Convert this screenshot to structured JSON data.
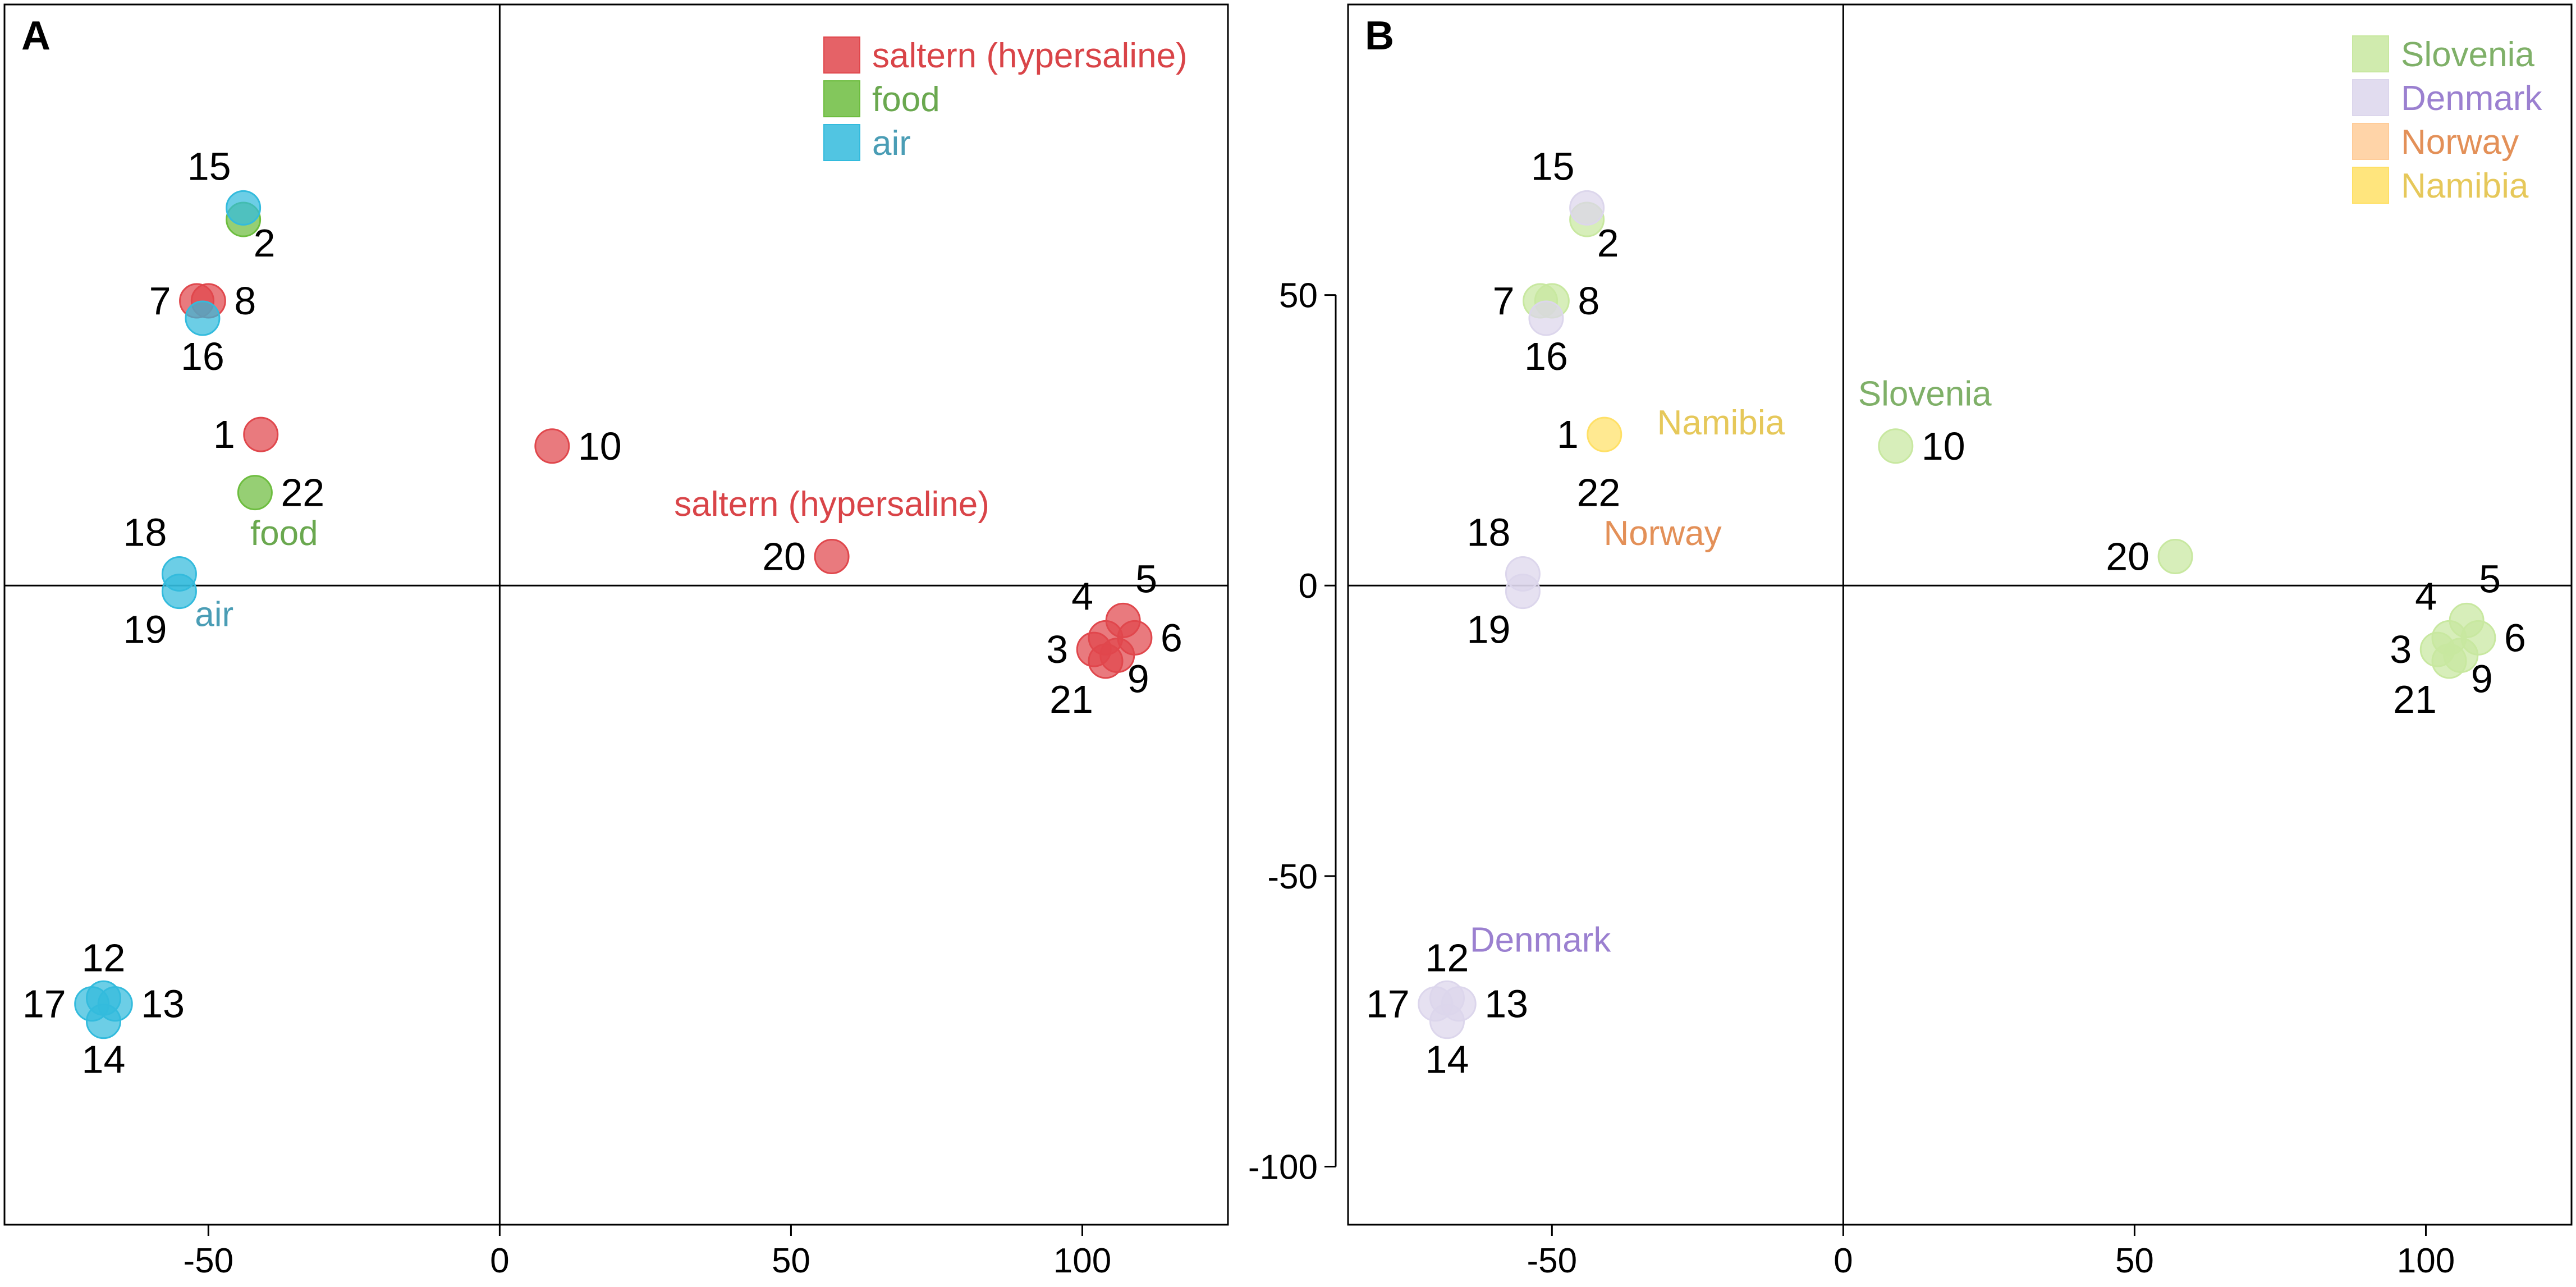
{
  "chart_data": [
    {
      "type": "scatter",
      "panel": "A",
      "xlim": [
        -85,
        125
      ],
      "ylim": [
        -110,
        100
      ],
      "xticks": [
        -50,
        0,
        50,
        100
      ],
      "yticks": [],
      "legend": [
        {
          "label": "saltern (hypersaline)",
          "color": "#e0474c",
          "text_color": "#d94448"
        },
        {
          "label": "food",
          "color": "#6dbd3f",
          "text_color": "#6aa84f"
        },
        {
          "label": "air",
          "color": "#33bbdd",
          "text_color": "#4a9db5"
        }
      ],
      "annotations": [
        {
          "text": "saltern (hypersaline)",
          "x": 57,
          "y": 12,
          "color": "#d94448"
        },
        {
          "text": "food",
          "x": -37,
          "y": 7,
          "color": "#6aa84f"
        },
        {
          "text": "air",
          "x": -49,
          "y": -7,
          "color": "#4a9db5"
        }
      ],
      "points": [
        {
          "id": "1",
          "x": -41,
          "y": 26,
          "group": "saltern (hypersaline)",
          "color": "#e0474c",
          "label_pos": "left"
        },
        {
          "id": "2",
          "x": -44,
          "y": 63,
          "group": "food",
          "color": "#6dbd3f",
          "label_pos": "below-right"
        },
        {
          "id": "3",
          "x": 102,
          "y": -11,
          "group": "saltern (hypersaline)",
          "color": "#e0474c",
          "label_pos": "left"
        },
        {
          "id": "4",
          "x": 104,
          "y": -9,
          "group": "saltern (hypersaline)",
          "color": "#e0474c",
          "label_pos": "above-left"
        },
        {
          "id": "5",
          "x": 107,
          "y": -6,
          "group": "saltern (hypersaline)",
          "color": "#e0474c",
          "label_pos": "above-right"
        },
        {
          "id": "6",
          "x": 109,
          "y": -9,
          "group": "saltern (hypersaline)",
          "color": "#e0474c",
          "label_pos": "right"
        },
        {
          "id": "7",
          "x": -52,
          "y": 49,
          "group": "saltern (hypersaline)",
          "color": "#e0474c",
          "label_pos": "left"
        },
        {
          "id": "8",
          "x": -50,
          "y": 49,
          "group": "saltern (hypersaline)",
          "color": "#e0474c",
          "label_pos": "right"
        },
        {
          "id": "9",
          "x": 106,
          "y": -12,
          "group": "saltern (hypersaline)",
          "color": "#e0474c",
          "label_pos": "below-right"
        },
        {
          "id": "10",
          "x": 9,
          "y": 24,
          "group": "saltern (hypersaline)",
          "color": "#e0474c",
          "label_pos": "right"
        },
        {
          "id": "12",
          "x": -68,
          "y": -71,
          "group": "air",
          "color": "#33bbdd",
          "label_pos": "above"
        },
        {
          "id": "13",
          "x": -66,
          "y": -72,
          "group": "air",
          "color": "#33bbdd",
          "label_pos": "right"
        },
        {
          "id": "14",
          "x": -68,
          "y": -75,
          "group": "air",
          "color": "#33bbdd",
          "label_pos": "below"
        },
        {
          "id": "15",
          "x": -44,
          "y": 65,
          "group": "air",
          "color": "#33bbdd",
          "label_pos": "above-left"
        },
        {
          "id": "16",
          "x": -51,
          "y": 46,
          "group": "air",
          "color": "#33bbdd",
          "label_pos": "below"
        },
        {
          "id": "17",
          "x": -70,
          "y": -72,
          "group": "air",
          "color": "#33bbdd",
          "label_pos": "left"
        },
        {
          "id": "18",
          "x": -55,
          "y": 2,
          "group": "air",
          "color": "#33bbdd",
          "label_pos": "above-left"
        },
        {
          "id": "19",
          "x": -55,
          "y": -1,
          "group": "air",
          "color": "#33bbdd",
          "label_pos": "below-left"
        },
        {
          "id": "20",
          "x": 57,
          "y": 5,
          "group": "saltern (hypersaline)",
          "color": "#e0474c",
          "label_pos": "left"
        },
        {
          "id": "21",
          "x": 104,
          "y": -13,
          "group": "saltern (hypersaline)",
          "color": "#e0474c",
          "label_pos": "below-left"
        },
        {
          "id": "22",
          "x": -42,
          "y": 16,
          "group": "food",
          "color": "#6dbd3f",
          "label_pos": "right"
        }
      ]
    },
    {
      "type": "scatter",
      "panel": "B",
      "xlim": [
        -85,
        125
      ],
      "ylim": [
        -110,
        100
      ],
      "xticks": [
        -50,
        0,
        50,
        100
      ],
      "yticks": [
        -100,
        -50,
        0,
        50
      ],
      "legend": [
        {
          "label": "Slovenia",
          "color": "#c8e8a0",
          "text_color": "#7fb068"
        },
        {
          "label": "Denmark",
          "color": "#dcd6ec",
          "text_color": "#9b80d0"
        },
        {
          "label": "Norway",
          "color": "#ffcc99",
          "text_color": "#e39058"
        },
        {
          "label": "Namibia",
          "color": "#ffe066",
          "text_color": "#e6c85a"
        }
      ],
      "annotations": [
        {
          "text": "Slovenia",
          "x": 14,
          "y": 31,
          "color": "#7fb068"
        },
        {
          "text": "Namibia",
          "x": -21,
          "y": 26,
          "color": "#e6c85a"
        },
        {
          "text": "Norway",
          "x": -31,
          "y": 7,
          "color": "#e39058"
        },
        {
          "text": "Denmark",
          "x": -52,
          "y": -63,
          "color": "#9b80d0"
        }
      ],
      "points": [
        {
          "id": "1",
          "x": -41,
          "y": 26,
          "group": "Namibia",
          "color": "#ffe066",
          "label_pos": "left"
        },
        {
          "id": "2",
          "x": -44,
          "y": 63,
          "group": "Slovenia",
          "color": "#c8e8a0",
          "label_pos": "below-right"
        },
        {
          "id": "3",
          "x": 102,
          "y": -11,
          "group": "Slovenia",
          "color": "#c8e8a0",
          "label_pos": "left"
        },
        {
          "id": "4",
          "x": 104,
          "y": -9,
          "group": "Slovenia",
          "color": "#c8e8a0",
          "label_pos": "above-left"
        },
        {
          "id": "5",
          "x": 107,
          "y": -6,
          "group": "Slovenia",
          "color": "#c8e8a0",
          "label_pos": "above-right"
        },
        {
          "id": "6",
          "x": 109,
          "y": -9,
          "group": "Slovenia",
          "color": "#c8e8a0",
          "label_pos": "right"
        },
        {
          "id": "7",
          "x": -52,
          "y": 49,
          "group": "Slovenia",
          "color": "#c8e8a0",
          "label_pos": "left"
        },
        {
          "id": "8",
          "x": -50,
          "y": 49,
          "group": "Slovenia",
          "color": "#c8e8a0",
          "label_pos": "right"
        },
        {
          "id": "9",
          "x": 106,
          "y": -12,
          "group": "Slovenia",
          "color": "#c8e8a0",
          "label_pos": "below-right"
        },
        {
          "id": "10",
          "x": 9,
          "y": 24,
          "group": "Slovenia",
          "color": "#c8e8a0",
          "label_pos": "right"
        },
        {
          "id": "12",
          "x": -68,
          "y": -71,
          "group": "Denmark",
          "color": "#dcd6ec",
          "label_pos": "above"
        },
        {
          "id": "13",
          "x": -66,
          "y": -72,
          "group": "Denmark",
          "color": "#dcd6ec",
          "label_pos": "right"
        },
        {
          "id": "14",
          "x": -68,
          "y": -75,
          "group": "Denmark",
          "color": "#dcd6ec",
          "label_pos": "below"
        },
        {
          "id": "15",
          "x": -44,
          "y": 65,
          "group": "Denmark",
          "color": "#dcd6ec",
          "label_pos": "above-left"
        },
        {
          "id": "16",
          "x": -51,
          "y": 46,
          "group": "Denmark",
          "color": "#dcd6ec",
          "label_pos": "below"
        },
        {
          "id": "17",
          "x": -70,
          "y": -72,
          "group": "Denmark",
          "color": "#dcd6ec",
          "label_pos": "left"
        },
        {
          "id": "18",
          "x": -55,
          "y": 2,
          "group": "Denmark",
          "color": "#dcd6ec",
          "label_pos": "above-left"
        },
        {
          "id": "19",
          "x": -55,
          "y": -1,
          "group": "Denmark",
          "color": "#dcd6ec",
          "label_pos": "below-left"
        },
        {
          "id": "20",
          "x": 57,
          "y": 5,
          "group": "Slovenia",
          "color": "#c8e8a0",
          "label_pos": "left"
        },
        {
          "id": "21",
          "x": 104,
          "y": -13,
          "group": "Slovenia",
          "color": "#c8e8a0",
          "label_pos": "below-left"
        },
        {
          "id": "22",
          "x": -42,
          "y": 16,
          "group": "Norway",
          "color": "none",
          "label_pos": "label-only"
        }
      ]
    }
  ]
}
